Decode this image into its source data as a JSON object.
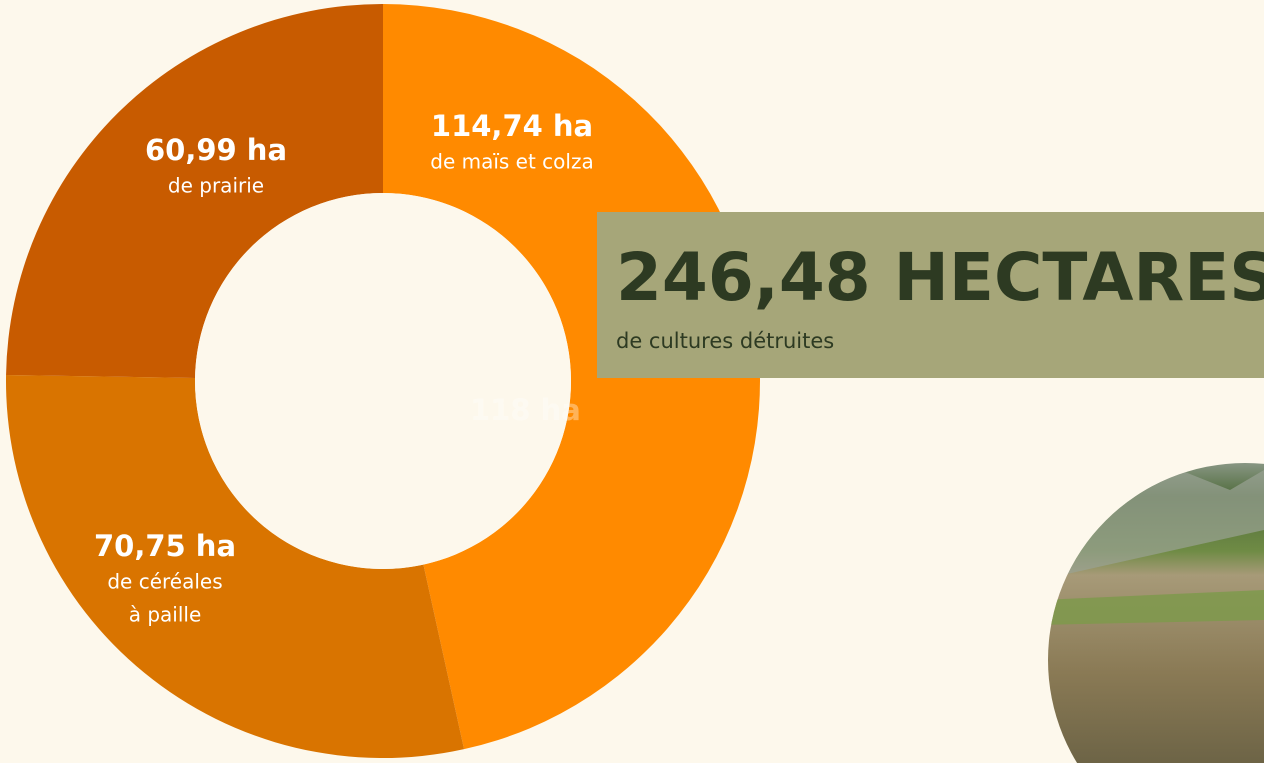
{
  "chart_data": {
    "type": "donut",
    "categories": [
      [
        "de maïs et colza"
      ],
      [
        "de céréales",
        "à paille"
      ],
      [
        "de prairie"
      ]
    ],
    "values": [
      114.74,
      70.75,
      60.99
    ],
    "value_labels": [
      "114,74 ha",
      "70,75 ha",
      "60,99 ha"
    ],
    "colors": [
      "#ff8a00",
      "#d97400",
      "#c85b00"
    ],
    "hidden_label": "118 ha",
    "headline": "246,48 HECTARES",
    "subheadline": "de cultures détruites"
  }
}
